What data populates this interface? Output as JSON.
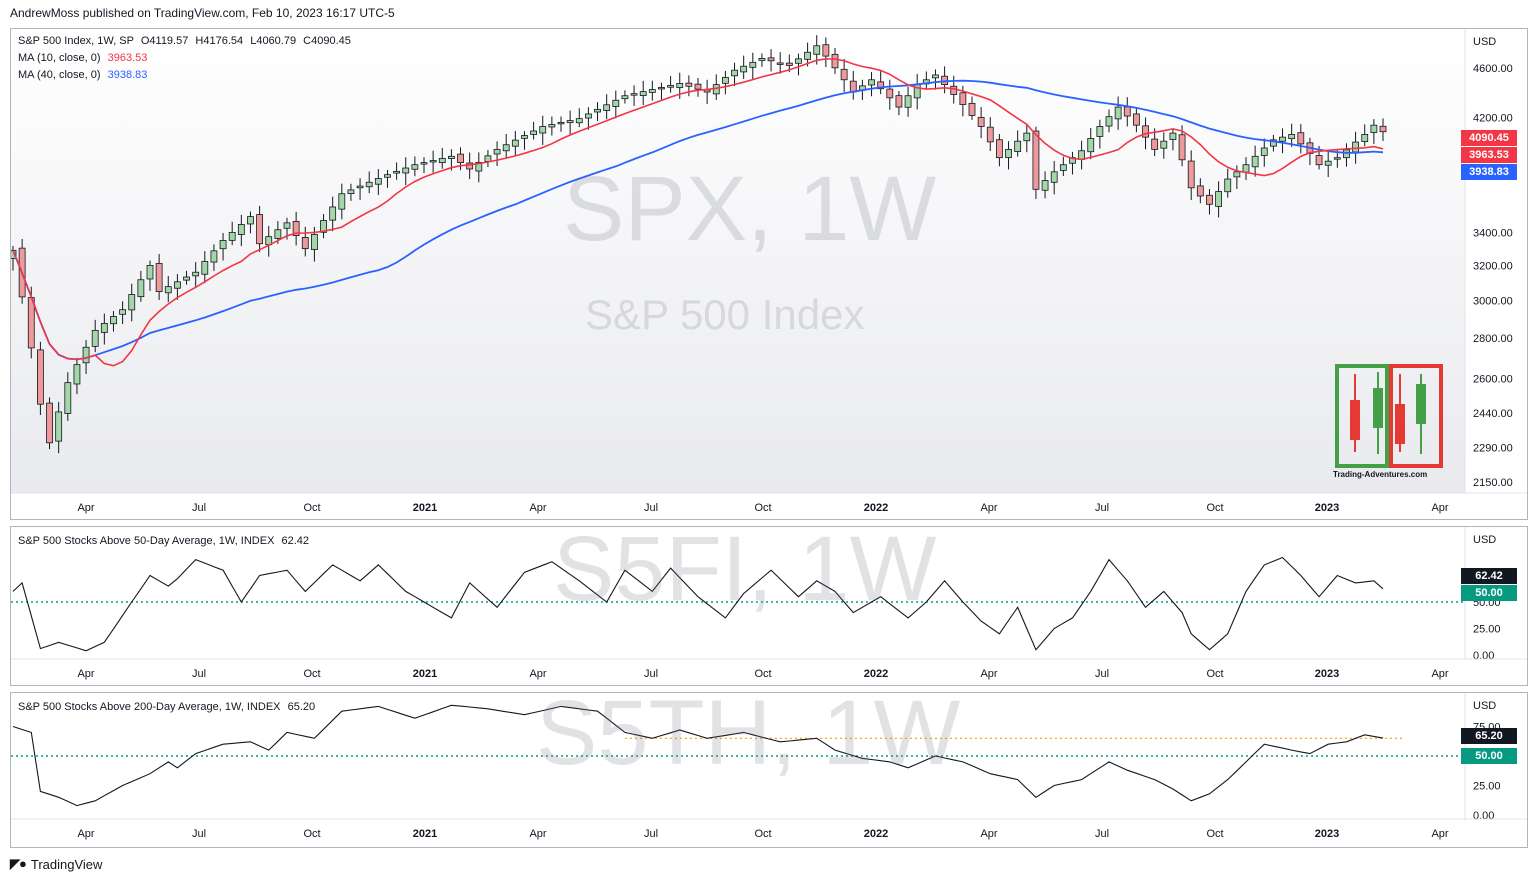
{
  "header": {
    "published": "AndrewMoss published on TradingView.com, Feb 10, 2023 16:17 UTC-5"
  },
  "footer": {
    "brand": "TradingView"
  },
  "colors": {
    "up": "#a5d6a7",
    "down": "#ef9a9a",
    "ma10": "#f23645",
    "ma40": "#2962ff",
    "osc": "#131722",
    "level50": "#089981",
    "level_orange": "#ff9800"
  },
  "panel1": {
    "title": "S&P 500 Index, 1W, SP",
    "o": "O4119.57",
    "h": "H4176.54",
    "l": "L4060.79",
    "c": "C4090.45",
    "ma10_label": "MA (10, close, 0)",
    "ma10_value": "3963.53",
    "ma40_label": "MA (40, close, 0)",
    "ma40_value": "3938.83",
    "watermark_symbol": "SPX, 1W",
    "watermark_name": "S&P 500 Index",
    "currency": "USD",
    "tag_close": "4090.45",
    "tag_ma10": "3963.53",
    "tag_ma40": "3938.83",
    "logo_caption": "Trading-Adventures.com"
  },
  "panel2": {
    "title": "S&P 500 Stocks Above 50-Day Average, 1W, INDEX",
    "value": "62.42",
    "watermark": "S5FI, 1W",
    "currency": "USD",
    "tag_value": "62.42",
    "tag_level": "50.00"
  },
  "panel3": {
    "title": "S&P 500 Stocks Above 200-Day Average, 1W, INDEX",
    "value": "65.20",
    "watermark": "S5TH, 1W",
    "currency": "USD",
    "tag_value": "65.20",
    "tag_level": "50.00"
  },
  "time_axis": [
    "Apr",
    "Jul",
    "Oct",
    "2021",
    "Apr",
    "Jul",
    "Oct",
    "2022",
    "Apr",
    "Jul",
    "Oct",
    "2023",
    "Apr"
  ],
  "chart_data": [
    {
      "type": "candlestick",
      "title": "S&P 500 Index, 1W, SP",
      "x_range": [
        "2020-02-24",
        "2023-04-24"
      ],
      "price_axis": [
        4600,
        4200,
        3400,
        3200,
        3000,
        2800,
        2600,
        2440,
        2290,
        2150
      ],
      "scale": "log",
      "anchors": [
        {
          "t": 0,
          "c": 3290
        },
        {
          "t": 3,
          "c": 2480
        },
        {
          "t": 4,
          "c": 2310
        },
        {
          "t": 6,
          "c": 2580
        },
        {
          "t": 9,
          "c": 2840
        },
        {
          "t": 12,
          "c": 2950
        },
        {
          "t": 15,
          "c": 3200
        },
        {
          "t": 16,
          "c": 3050
        },
        {
          "t": 20,
          "c": 3160
        },
        {
          "t": 23,
          "c": 3350
        },
        {
          "t": 26,
          "c": 3500
        },
        {
          "t": 27,
          "c": 3330
        },
        {
          "t": 30,
          "c": 3460
        },
        {
          "t": 32,
          "c": 3300
        },
        {
          "t": 36,
          "c": 3650
        },
        {
          "t": 41,
          "c": 3780
        },
        {
          "t": 44,
          "c": 3850
        },
        {
          "t": 48,
          "c": 3910
        },
        {
          "t": 50,
          "c": 3820
        },
        {
          "t": 53,
          "c": 3960
        },
        {
          "t": 58,
          "c": 4130
        },
        {
          "t": 62,
          "c": 4190
        },
        {
          "t": 67,
          "c": 4370
        },
        {
          "t": 73,
          "c": 4470
        },
        {
          "t": 76,
          "c": 4400
        },
        {
          "t": 79,
          "c": 4580
        },
        {
          "t": 82,
          "c": 4680
        },
        {
          "t": 85,
          "c": 4620
        },
        {
          "t": 88,
          "c": 4790
        },
        {
          "t": 89,
          "c": 4700
        },
        {
          "t": 92,
          "c": 4400
        },
        {
          "t": 94,
          "c": 4500
        },
        {
          "t": 97,
          "c": 4280
        },
        {
          "t": 99,
          "c": 4460
        },
        {
          "t": 101,
          "c": 4540
        },
        {
          "t": 104,
          "c": 4300
        },
        {
          "t": 106,
          "c": 4130
        },
        {
          "t": 108,
          "c": 3900
        },
        {
          "t": 111,
          "c": 4080
        },
        {
          "t": 112,
          "c": 3680
        },
        {
          "t": 114,
          "c": 3800
        },
        {
          "t": 117,
          "c": 3950
        },
        {
          "t": 119,
          "c": 4130
        },
        {
          "t": 121,
          "c": 4280
        },
        {
          "t": 123,
          "c": 4140
        },
        {
          "t": 125,
          "c": 3960
        },
        {
          "t": 127,
          "c": 4080
        },
        {
          "t": 129,
          "c": 3690
        },
        {
          "t": 131,
          "c": 3580
        },
        {
          "t": 133,
          "c": 3750
        },
        {
          "t": 135,
          "c": 3850
        },
        {
          "t": 138,
          "c": 4030
        },
        {
          "t": 140,
          "c": 4070
        },
        {
          "t": 142,
          "c": 3930
        },
        {
          "t": 143,
          "c": 3850
        },
        {
          "t": 145,
          "c": 3900
        },
        {
          "t": 148,
          "c": 4070
        },
        {
          "t": 149,
          "c": 4140
        },
        {
          "t": 150,
          "c": 4090
        }
      ],
      "ma10_last": 3963.53,
      "ma40_last": 3938.83,
      "close_last": 4090.45
    },
    {
      "type": "line",
      "title": "S&P 500 Stocks Above 50-Day Average, 1W, INDEX",
      "y_axis": [
        75.0,
        50.0,
        25.0,
        0.0
      ],
      "level": 50.0,
      "anchors": [
        {
          "t": 0,
          "v": 60
        },
        {
          "t": 1,
          "v": 68
        },
        {
          "t": 3,
          "v": 6
        },
        {
          "t": 5,
          "v": 12
        },
        {
          "t": 8,
          "v": 4
        },
        {
          "t": 10,
          "v": 12
        },
        {
          "t": 13,
          "v": 50
        },
        {
          "t": 15,
          "v": 75
        },
        {
          "t": 17,
          "v": 65
        },
        {
          "t": 18,
          "v": 72
        },
        {
          "t": 20,
          "v": 90
        },
        {
          "t": 23,
          "v": 80
        },
        {
          "t": 25,
          "v": 50
        },
        {
          "t": 27,
          "v": 75
        },
        {
          "t": 30,
          "v": 80
        },
        {
          "t": 32,
          "v": 60
        },
        {
          "t": 35,
          "v": 85
        },
        {
          "t": 38,
          "v": 70
        },
        {
          "t": 40,
          "v": 85
        },
        {
          "t": 43,
          "v": 60
        },
        {
          "t": 46,
          "v": 45
        },
        {
          "t": 48,
          "v": 35
        },
        {
          "t": 50,
          "v": 68
        },
        {
          "t": 53,
          "v": 45
        },
        {
          "t": 56,
          "v": 78
        },
        {
          "t": 59,
          "v": 88
        },
        {
          "t": 62,
          "v": 70
        },
        {
          "t": 65,
          "v": 50
        },
        {
          "t": 67,
          "v": 80
        },
        {
          "t": 70,
          "v": 60
        },
        {
          "t": 72,
          "v": 82
        },
        {
          "t": 75,
          "v": 55
        },
        {
          "t": 78,
          "v": 35
        },
        {
          "t": 80,
          "v": 58
        },
        {
          "t": 83,
          "v": 80
        },
        {
          "t": 86,
          "v": 55
        },
        {
          "t": 88,
          "v": 70
        },
        {
          "t": 90,
          "v": 60
        },
        {
          "t": 92,
          "v": 40
        },
        {
          "t": 95,
          "v": 55
        },
        {
          "t": 98,
          "v": 35
        },
        {
          "t": 100,
          "v": 50
        },
        {
          "t": 102,
          "v": 70
        },
        {
          "t": 104,
          "v": 50
        },
        {
          "t": 106,
          "v": 32
        },
        {
          "t": 108,
          "v": 20
        },
        {
          "t": 110,
          "v": 45
        },
        {
          "t": 112,
          "v": 5
        },
        {
          "t": 114,
          "v": 25
        },
        {
          "t": 116,
          "v": 35
        },
        {
          "t": 118,
          "v": 60
        },
        {
          "t": 120,
          "v": 90
        },
        {
          "t": 122,
          "v": 70
        },
        {
          "t": 124,
          "v": 45
        },
        {
          "t": 126,
          "v": 60
        },
        {
          "t": 128,
          "v": 40
        },
        {
          "t": 129,
          "v": 20
        },
        {
          "t": 131,
          "v": 5
        },
        {
          "t": 133,
          "v": 20
        },
        {
          "t": 135,
          "v": 60
        },
        {
          "t": 137,
          "v": 85
        },
        {
          "t": 139,
          "v": 92
        },
        {
          "t": 141,
          "v": 75
        },
        {
          "t": 143,
          "v": 55
        },
        {
          "t": 145,
          "v": 75
        },
        {
          "t": 147,
          "v": 68
        },
        {
          "t": 149,
          "v": 70
        },
        {
          "t": 150,
          "v": 62.42
        }
      ]
    },
    {
      "type": "line",
      "title": "S&P 500 Stocks Above 200-Day Average, 1W, INDEX",
      "y_axis": [
        75.0,
        50.0,
        25.0,
        0.0
      ],
      "level": 50.0,
      "level_orange": 65,
      "anchors": [
        {
          "t": 0,
          "v": 75
        },
        {
          "t": 2,
          "v": 70
        },
        {
          "t": 3,
          "v": 20
        },
        {
          "t": 5,
          "v": 15
        },
        {
          "t": 7,
          "v": 8
        },
        {
          "t": 9,
          "v": 12
        },
        {
          "t": 12,
          "v": 25
        },
        {
          "t": 15,
          "v": 35
        },
        {
          "t": 17,
          "v": 45
        },
        {
          "t": 18,
          "v": 40
        },
        {
          "t": 20,
          "v": 52
        },
        {
          "t": 23,
          "v": 60
        },
        {
          "t": 26,
          "v": 62
        },
        {
          "t": 28,
          "v": 55
        },
        {
          "t": 30,
          "v": 70
        },
        {
          "t": 33,
          "v": 65
        },
        {
          "t": 36,
          "v": 88
        },
        {
          "t": 40,
          "v": 92
        },
        {
          "t": 44,
          "v": 82
        },
        {
          "t": 48,
          "v": 93
        },
        {
          "t": 52,
          "v": 90
        },
        {
          "t": 56,
          "v": 85
        },
        {
          "t": 60,
          "v": 92
        },
        {
          "t": 64,
          "v": 88
        },
        {
          "t": 67,
          "v": 70
        },
        {
          "t": 70,
          "v": 65
        },
        {
          "t": 73,
          "v": 72
        },
        {
          "t": 76,
          "v": 65
        },
        {
          "t": 80,
          "v": 70
        },
        {
          "t": 84,
          "v": 62
        },
        {
          "t": 88,
          "v": 65
        },
        {
          "t": 90,
          "v": 55
        },
        {
          "t": 93,
          "v": 48
        },
        {
          "t": 96,
          "v": 45
        },
        {
          "t": 98,
          "v": 40
        },
        {
          "t": 101,
          "v": 50
        },
        {
          "t": 104,
          "v": 45
        },
        {
          "t": 107,
          "v": 35
        },
        {
          "t": 110,
          "v": 30
        },
        {
          "t": 112,
          "v": 15
        },
        {
          "t": 114,
          "v": 25
        },
        {
          "t": 117,
          "v": 30
        },
        {
          "t": 120,
          "v": 45
        },
        {
          "t": 122,
          "v": 38
        },
        {
          "t": 125,
          "v": 30
        },
        {
          "t": 127,
          "v": 22
        },
        {
          "t": 129,
          "v": 12
        },
        {
          "t": 131,
          "v": 18
        },
        {
          "t": 133,
          "v": 30
        },
        {
          "t": 135,
          "v": 45
        },
        {
          "t": 137,
          "v": 60
        },
        {
          "t": 140,
          "v": 55
        },
        {
          "t": 142,
          "v": 52
        },
        {
          "t": 144,
          "v": 60
        },
        {
          "t": 146,
          "v": 62
        },
        {
          "t": 148,
          "v": 68
        },
        {
          "t": 150,
          "v": 65.2
        }
      ]
    }
  ]
}
